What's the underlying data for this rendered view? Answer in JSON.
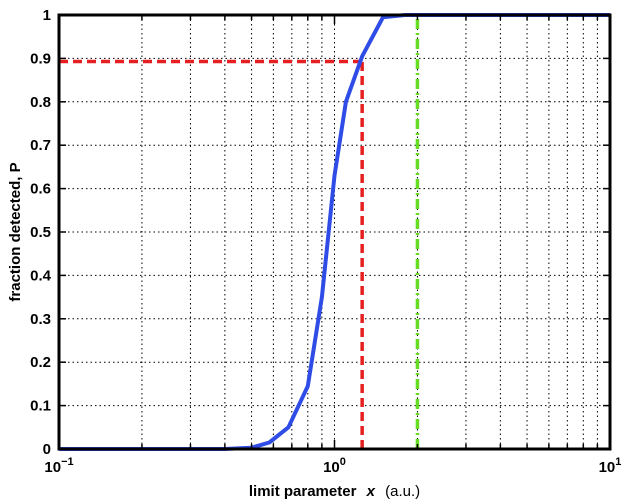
{
  "chart_data": {
    "type": "line",
    "title": "",
    "xlabel": {
      "text": "limit parameter",
      "variable": "x",
      "unit": "(a.u.)"
    },
    "ylabel": "fraction detected, P",
    "xscale": "log",
    "xlim": [
      0.1,
      10
    ],
    "ylim": [
      0,
      1
    ],
    "grid": true,
    "xticks": [
      {
        "value": 0.1,
        "base": "10",
        "exp": "−1"
      },
      {
        "value": 1,
        "base": "10",
        "exp": "0"
      },
      {
        "value": 10,
        "base": "10",
        "exp": "1"
      }
    ],
    "yticks": [
      "0",
      "0.1",
      "0.2",
      "0.3",
      "0.4",
      "0.5",
      "0.6",
      "0.7",
      "0.8",
      "0.9",
      "1"
    ],
    "series": [
      {
        "style": "solid",
        "color": "#2f4de6",
        "x": [
          0.1,
          0.3,
          0.4,
          0.5,
          0.58,
          0.68,
          0.8,
          0.9,
          1.0,
          1.1,
          1.26,
          1.5,
          1.8,
          2.0,
          3.0,
          5.0,
          10.0
        ],
        "y": [
          0.0,
          0.0,
          0.0,
          0.003,
          0.015,
          0.05,
          0.145,
          0.35,
          0.63,
          0.8,
          0.905,
          0.995,
          1.0,
          1.0,
          1.0,
          1.0,
          1.0
        ]
      }
    ],
    "reference_lines": [
      {
        "kind": "horizontal",
        "y": 0.893,
        "x_from": 0.1,
        "x_to": 1.26,
        "color": "#e62020",
        "style": "dashed"
      },
      {
        "kind": "vertical",
        "x": 1.26,
        "y_from": 0,
        "y_to": 0.893,
        "color": "#e62020",
        "style": "dashed"
      },
      {
        "kind": "vertical",
        "x": 2.0,
        "y_from": 0,
        "y_to": 1,
        "color": "#66dd22",
        "style": "dash-dot"
      }
    ]
  }
}
